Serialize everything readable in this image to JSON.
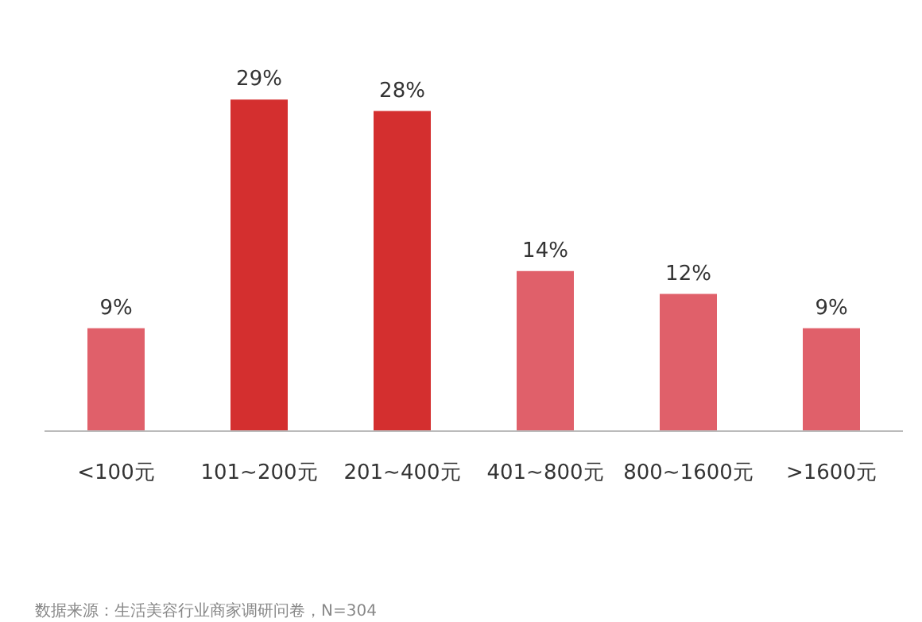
{
  "chart_data": {
    "type": "bar",
    "categories": [
      "<100元",
      "101~200元",
      "201~400元",
      "401~800元",
      "800~1600元",
      ">1600元"
    ],
    "values": [
      9,
      29,
      28,
      14,
      12,
      9
    ],
    "colors": [
      "#e0606a",
      "#d42f2f",
      "#d42f2f",
      "#e0606a",
      "#e0606a",
      "#e0606a"
    ],
    "value_labels": [
      "9%",
      "29%",
      "28%",
      "14%",
      "12%",
      "9%"
    ],
    "annotations": [
      "数据来源：生活美容行业商家调研问卷，N=304"
    ]
  }
}
